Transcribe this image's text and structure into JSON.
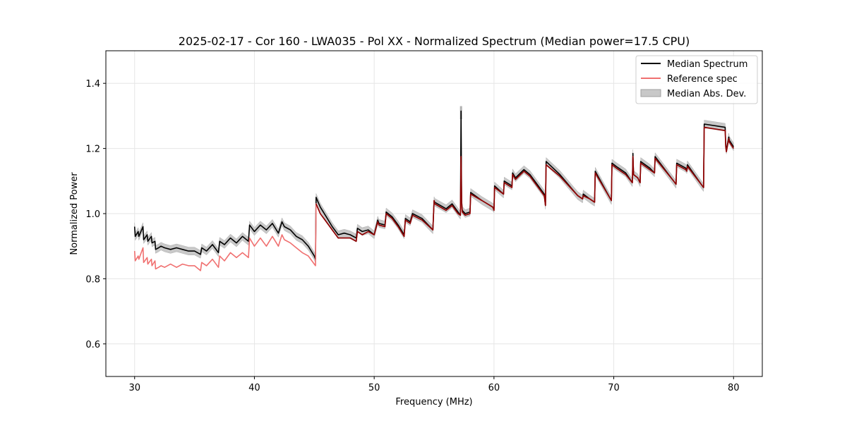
{
  "chart_data": {
    "type": "line",
    "title": "2025-02-17 - Cor 160 - LWA035 - Pol XX - Normalized Spectrum (Median power=17.5 CPU)",
    "xlabel": "Frequency (MHz)",
    "ylabel": "Normalized Power",
    "xlim": [
      27.6,
      82.4
    ],
    "ylim": [
      0.5,
      1.5
    ],
    "xticks": [
      30,
      40,
      50,
      60,
      70,
      80
    ],
    "yticks": [
      0.6,
      0.8,
      1.0,
      1.2,
      1.4
    ],
    "xtick_labels": [
      "30",
      "40",
      "50",
      "60",
      "70",
      "80"
    ],
    "ytick_labels": [
      "0.6",
      "0.8",
      "1.0",
      "1.2",
      "1.4"
    ],
    "grid": true,
    "legend_position": "top-right",
    "legend": [
      {
        "label": "Median Spectrum",
        "kind": "line",
        "color": "#000000"
      },
      {
        "label": "Reference spec",
        "kind": "line",
        "color": "#f07070"
      },
      {
        "label": "Median Abs. Dev.",
        "kind": "band",
        "color": "#c8c8c8"
      }
    ],
    "series": [
      {
        "name": "Median Spectrum",
        "color": "#000000",
        "x": [
          30.0,
          30.05,
          30.3,
          30.35,
          30.7,
          30.75,
          31.05,
          31.1,
          31.4,
          31.45,
          31.7,
          31.75,
          32.0,
          32.2,
          32.5,
          33.0,
          33.5,
          34.0,
          34.5,
          35.0,
          35.5,
          35.6,
          36.0,
          36.5,
          37.0,
          37.1,
          37.5,
          38.0,
          38.5,
          39.0,
          39.5,
          39.6,
          40.0,
          40.5,
          41.0,
          41.5,
          42.0,
          42.3,
          42.5,
          43.0,
          43.5,
          44.0,
          44.5,
          45.0,
          45.1,
          45.15,
          45.5,
          46.0,
          46.5,
          47.0,
          47.5,
          48.0,
          48.5,
          48.6,
          49.0,
          49.5,
          50.0,
          50.3,
          50.4,
          50.9,
          51.0,
          51.5,
          52.0,
          52.5,
          52.6,
          53.0,
          53.2,
          54.0,
          54.9,
          55.0,
          55.05,
          56.0,
          56.5,
          57.0,
          57.2,
          57.25,
          57.3,
          57.35,
          57.6,
          58.0,
          58.05,
          59.0,
          59.9,
          60.0,
          60.05,
          60.8,
          60.85,
          61.5,
          61.55,
          61.8,
          62.5,
          63.0,
          64.2,
          64.3,
          64.35,
          65.5,
          67.0,
          67.4,
          67.45,
          68.0,
          68.4,
          68.45,
          69.8,
          69.85,
          70.2,
          71.0,
          71.55,
          71.6,
          71.65,
          72.0,
          72.2,
          72.25,
          73.0,
          73.4,
          73.45,
          75.0,
          75.2,
          75.25,
          76.0,
          76.1,
          76.15,
          77.4,
          77.5,
          77.55,
          79.3,
          79.35,
          79.4,
          79.6,
          79.65,
          80.0
        ],
        "y": [
          0.96,
          0.93,
          0.945,
          0.93,
          0.96,
          0.92,
          0.935,
          0.915,
          0.93,
          0.91,
          0.915,
          0.89,
          0.895,
          0.9,
          0.895,
          0.89,
          0.895,
          0.89,
          0.885,
          0.885,
          0.875,
          0.895,
          0.885,
          0.905,
          0.88,
          0.915,
          0.905,
          0.925,
          0.91,
          0.93,
          0.915,
          0.965,
          0.945,
          0.965,
          0.95,
          0.97,
          0.94,
          0.975,
          0.96,
          0.95,
          0.93,
          0.92,
          0.9,
          0.87,
          0.86,
          1.05,
          1.02,
          0.99,
          0.96,
          0.935,
          0.94,
          0.935,
          0.925,
          0.955,
          0.945,
          0.95,
          0.935,
          0.98,
          0.97,
          0.965,
          1.005,
          0.99,
          0.965,
          0.935,
          0.985,
          0.975,
          1.0,
          0.985,
          0.95,
          1.04,
          1.035,
          1.015,
          1.03,
          1.005,
          0.995,
          1.315,
          1.04,
          1.01,
          1.0,
          1.005,
          1.065,
          1.04,
          1.02,
          1.015,
          1.085,
          1.06,
          1.1,
          1.085,
          1.125,
          1.11,
          1.135,
          1.12,
          1.06,
          1.025,
          1.16,
          1.12,
          1.055,
          1.045,
          1.06,
          1.045,
          1.035,
          1.13,
          1.04,
          1.155,
          1.145,
          1.125,
          1.095,
          1.185,
          1.12,
          1.11,
          1.095,
          1.16,
          1.14,
          1.125,
          1.175,
          1.1,
          1.09,
          1.155,
          1.14,
          1.135,
          1.15,
          1.085,
          1.08,
          1.275,
          1.265,
          1.21,
          1.195,
          1.235,
          1.225,
          1.205
        ]
      },
      {
        "name": "Reference spec",
        "color": "#f07070",
        "x": [
          30.0,
          30.05,
          30.3,
          30.35,
          30.7,
          30.75,
          31.05,
          31.1,
          31.4,
          31.45,
          31.7,
          31.75,
          32.0,
          32.2,
          32.5,
          33.0,
          33.5,
          34.0,
          34.5,
          35.0,
          35.5,
          35.6,
          36.0,
          36.5,
          37.0,
          37.1,
          37.5,
          38.0,
          38.5,
          39.0,
          39.5,
          39.6,
          40.0,
          40.5,
          41.0,
          41.5,
          42.0,
          42.3,
          42.5,
          43.0,
          43.5,
          44.0,
          44.5,
          45.0,
          45.1,
          45.15,
          45.5,
          46.0,
          46.5,
          47.0,
          47.5,
          48.0,
          48.5,
          48.6,
          49.0,
          49.5,
          50.0,
          50.3,
          50.4,
          50.9,
          51.0,
          51.5,
          52.0,
          52.5,
          52.6,
          53.0,
          53.2,
          54.0,
          54.9,
          55.0,
          55.05,
          56.0,
          56.5,
          57.0,
          57.2,
          57.25,
          57.3,
          57.35,
          57.6,
          58.0,
          58.05,
          59.0,
          59.9,
          60.0,
          60.05,
          60.8,
          60.85,
          61.5,
          61.55,
          61.8,
          62.5,
          63.0,
          64.2,
          64.3,
          64.35,
          65.5,
          67.0,
          67.4,
          67.45,
          68.0,
          68.4,
          68.45,
          69.8,
          69.85,
          70.2,
          71.0,
          71.55,
          71.6,
          71.65,
          72.0,
          72.2,
          72.25,
          73.0,
          73.4,
          73.45,
          75.0,
          75.2,
          75.25,
          76.0,
          76.1,
          76.15,
          77.4,
          77.5,
          77.55,
          79.3,
          79.35,
          79.4,
          79.6,
          79.65,
          80.0
        ],
        "y": [
          0.885,
          0.855,
          0.87,
          0.86,
          0.895,
          0.85,
          0.865,
          0.845,
          0.86,
          0.84,
          0.855,
          0.83,
          0.835,
          0.84,
          0.835,
          0.845,
          0.835,
          0.845,
          0.84,
          0.84,
          0.825,
          0.85,
          0.84,
          0.86,
          0.835,
          0.87,
          0.855,
          0.88,
          0.865,
          0.88,
          0.865,
          0.925,
          0.9,
          0.925,
          0.9,
          0.93,
          0.9,
          0.935,
          0.92,
          0.91,
          0.895,
          0.88,
          0.87,
          0.845,
          0.84,
          1.03,
          1.0,
          0.975,
          0.95,
          0.925,
          0.925,
          0.925,
          0.915,
          0.945,
          0.935,
          0.945,
          0.935,
          0.975,
          0.965,
          0.96,
          1.0,
          0.985,
          0.96,
          0.93,
          0.98,
          0.97,
          0.995,
          0.98,
          0.95,
          1.04,
          1.03,
          1.01,
          1.025,
          1.0,
          0.995,
          1.175,
          1.035,
          1.005,
          0.995,
          1.0,
          1.06,
          1.04,
          1.02,
          1.01,
          1.08,
          1.06,
          1.095,
          1.08,
          1.12,
          1.105,
          1.13,
          1.115,
          1.055,
          1.025,
          1.15,
          1.115,
          1.055,
          1.045,
          1.055,
          1.045,
          1.035,
          1.125,
          1.04,
          1.15,
          1.14,
          1.12,
          1.095,
          1.175,
          1.12,
          1.11,
          1.095,
          1.155,
          1.135,
          1.125,
          1.17,
          1.1,
          1.09,
          1.15,
          1.135,
          1.13,
          1.145,
          1.085,
          1.08,
          1.265,
          1.255,
          1.205,
          1.19,
          1.23,
          1.22,
          1.2
        ]
      }
    ],
    "band": {
      "name": "Median Abs. Dev.",
      "color": "#c8c8c8",
      "half_width": 0.012
    },
    "spike": {
      "x": 57.25,
      "band_top": 1.33,
      "band_bottom": 1.29
    }
  }
}
